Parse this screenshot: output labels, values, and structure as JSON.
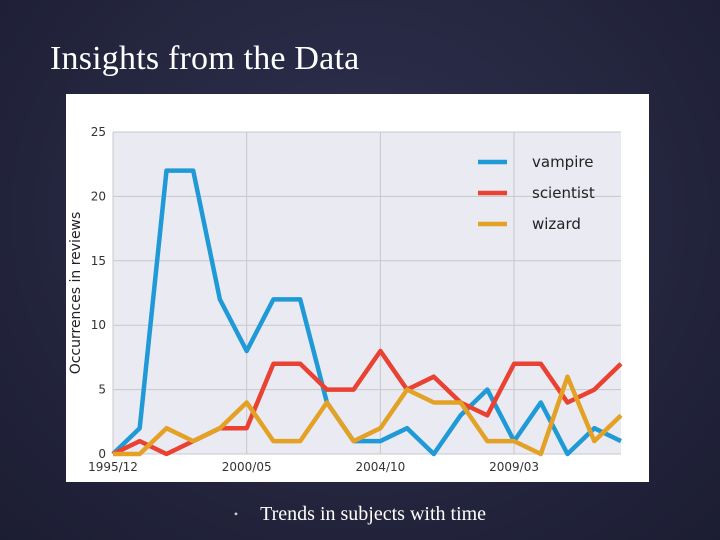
{
  "slide": {
    "title": "Insights from the Data",
    "bullet": "Trends in subjects with time"
  },
  "chart_data": {
    "type": "line",
    "title": "",
    "xlabel": "",
    "ylabel": "Occurrences in reviews",
    "x_tick_labels": [
      "1995/12",
      "2000/05",
      "2004/10",
      "2009/03"
    ],
    "x_tick_index": [
      0,
      5,
      10,
      15
    ],
    "y_ticks": [
      0,
      5,
      10,
      15,
      20,
      25
    ],
    "ylim": [
      0,
      25
    ],
    "grid": true,
    "legend_position": "top-right",
    "n_points": 20,
    "series": [
      {
        "name": "vampire",
        "color": "#1f9ad6",
        "values": [
          0,
          2,
          22,
          22,
          12,
          8,
          12,
          12,
          4,
          1,
          1,
          2,
          0,
          3,
          5,
          1,
          4,
          0,
          2,
          1
        ]
      },
      {
        "name": "scientist",
        "color": "#ea4232",
        "values": [
          0,
          1,
          0,
          1,
          2,
          2,
          7,
          7,
          5,
          5,
          8,
          5,
          6,
          4,
          3,
          7,
          7,
          4,
          5,
          7
        ]
      },
      {
        "name": "wizard",
        "color": "#e3a126",
        "values": [
          0,
          0,
          2,
          1,
          2,
          4,
          1,
          1,
          4,
          1,
          2,
          5,
          4,
          4,
          1,
          1,
          0,
          6,
          1,
          3
        ]
      }
    ]
  }
}
